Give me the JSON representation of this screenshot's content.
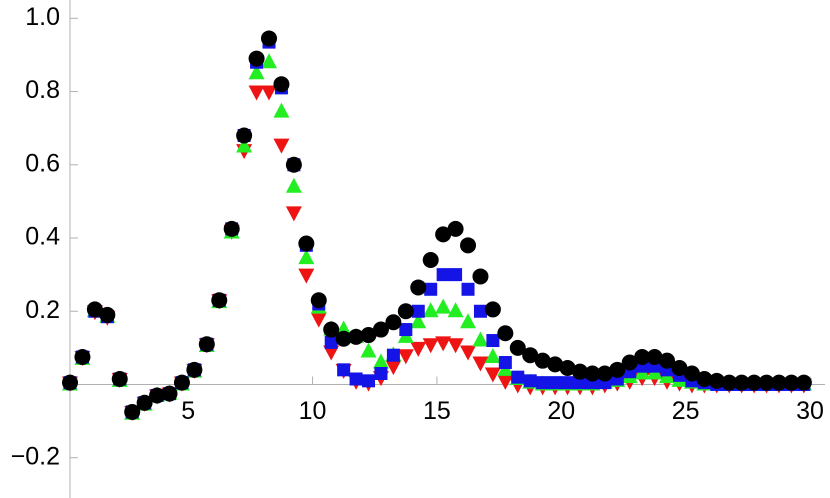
{
  "chart_data": {
    "type": "scatter",
    "x": [
      0.25,
      0.75,
      1.25,
      1.75,
      2.25,
      2.75,
      3.25,
      3.75,
      4.25,
      4.75,
      5.25,
      5.75,
      6.25,
      6.75,
      7.25,
      7.75,
      8.25,
      8.75,
      9.25,
      9.75,
      10.25,
      10.75,
      11.25,
      11.75,
      12.25,
      12.75,
      13.25,
      13.75,
      14.25,
      14.75,
      15.25,
      15.75,
      16.25,
      16.75,
      17.25,
      17.75,
      18.25,
      18.75,
      19.25,
      19.75,
      20.25,
      20.75,
      21.25,
      21.75,
      22.25,
      22.75,
      23.25,
      23.75,
      24.25,
      24.75,
      25.25,
      25.75,
      26.25,
      26.75,
      27.25,
      27.75,
      28.25,
      28.75,
      29.25,
      29.75
    ],
    "series": [
      {
        "color": "#000000",
        "marker": "circle",
        "values": [
          0.005,
          0.075,
          0.205,
          0.19,
          0.015,
          -0.075,
          -0.05,
          -0.03,
          -0.025,
          0.005,
          0.04,
          0.11,
          0.23,
          0.425,
          0.68,
          0.89,
          0.945,
          0.82,
          0.6,
          0.385,
          0.23,
          0.15,
          0.125,
          0.13,
          0.135,
          0.15,
          0.17,
          0.2,
          0.265,
          0.34,
          0.41,
          0.425,
          0.38,
          0.295,
          0.205,
          0.14,
          0.1,
          0.08,
          0.065,
          0.055,
          0.045,
          0.035,
          0.03,
          0.03,
          0.04,
          0.06,
          0.075,
          0.075,
          0.065,
          0.045,
          0.03,
          0.015,
          0.01,
          0.005,
          0.005,
          0.005,
          0.005,
          0.005,
          0.005,
          0.005
        ]
      },
      {
        "color": "#1414e6",
        "marker": "square",
        "values": [
          0.005,
          0.075,
          0.2,
          0.185,
          0.015,
          -0.075,
          -0.05,
          -0.03,
          -0.025,
          0.005,
          0.04,
          0.11,
          0.23,
          0.425,
          0.68,
          0.88,
          0.935,
          0.81,
          0.6,
          0.38,
          0.22,
          0.115,
          0.04,
          0.015,
          0.01,
          0.03,
          0.08,
          0.15,
          0.2,
          0.26,
          0.3,
          0.3,
          0.26,
          0.2,
          0.12,
          0.06,
          0.02,
          0.01,
          0.005,
          0.005,
          0.005,
          0.005,
          0.005,
          0.005,
          0.015,
          0.035,
          0.05,
          0.05,
          0.04,
          0.025,
          0.01,
          0.005,
          0,
          0,
          0,
          0,
          0,
          0,
          0,
          0
        ]
      },
      {
        "color": "#22ee22",
        "marker": "triangle-up",
        "values": [
          0,
          0.07,
          0.2,
          0.185,
          0.01,
          -0.08,
          -0.055,
          -0.03,
          -0.025,
          0,
          0.035,
          0.105,
          0.225,
          0.415,
          0.65,
          0.85,
          0.88,
          0.745,
          0.54,
          0.345,
          0.21,
          0.15,
          0.15,
          0.13,
          0.09,
          0.06,
          0.08,
          0.13,
          0.17,
          0.2,
          0.21,
          0.2,
          0.17,
          0.12,
          0.075,
          0.04,
          0.015,
          0.005,
          0,
          0,
          0,
          0,
          0,
          0.005,
          0.01,
          0.02,
          0.03,
          0.03,
          0.02,
          0.01,
          0.005,
          0,
          0,
          0,
          0,
          0,
          0,
          0,
          0,
          0
        ]
      },
      {
        "color": "#ee1414",
        "marker": "triangle-down",
        "values": [
          0.005,
          0.075,
          0.2,
          0.185,
          0.015,
          -0.075,
          -0.05,
          -0.03,
          -0.025,
          0.005,
          0.04,
          0.11,
          0.23,
          0.42,
          0.64,
          0.8,
          0.8,
          0.655,
          0.47,
          0.3,
          0.18,
          0.09,
          0.04,
          0.01,
          0.005,
          0.02,
          0.05,
          0.08,
          0.1,
          0.11,
          0.115,
          0.11,
          0.09,
          0.06,
          0.03,
          0.01,
          0,
          -0.005,
          -0.005,
          -0.005,
          -0.005,
          -0.005,
          -0.005,
          0,
          0.005,
          0.01,
          0.02,
          0.02,
          0.01,
          0.005,
          0,
          0,
          0,
          0,
          0,
          0,
          0,
          0,
          0,
          0
        ]
      }
    ],
    "xlim": [
      0.25,
      30.6
    ],
    "ylim": [
      -0.31,
      1.05
    ],
    "xticks": [
      5,
      10,
      15,
      20,
      25,
      30
    ],
    "yticks": [
      {
        "value": -0.2,
        "label": "−0.2"
      },
      0.2,
      0.4,
      0.6,
      0.8,
      {
        "value": 1,
        "label": "1.0"
      }
    ]
  }
}
